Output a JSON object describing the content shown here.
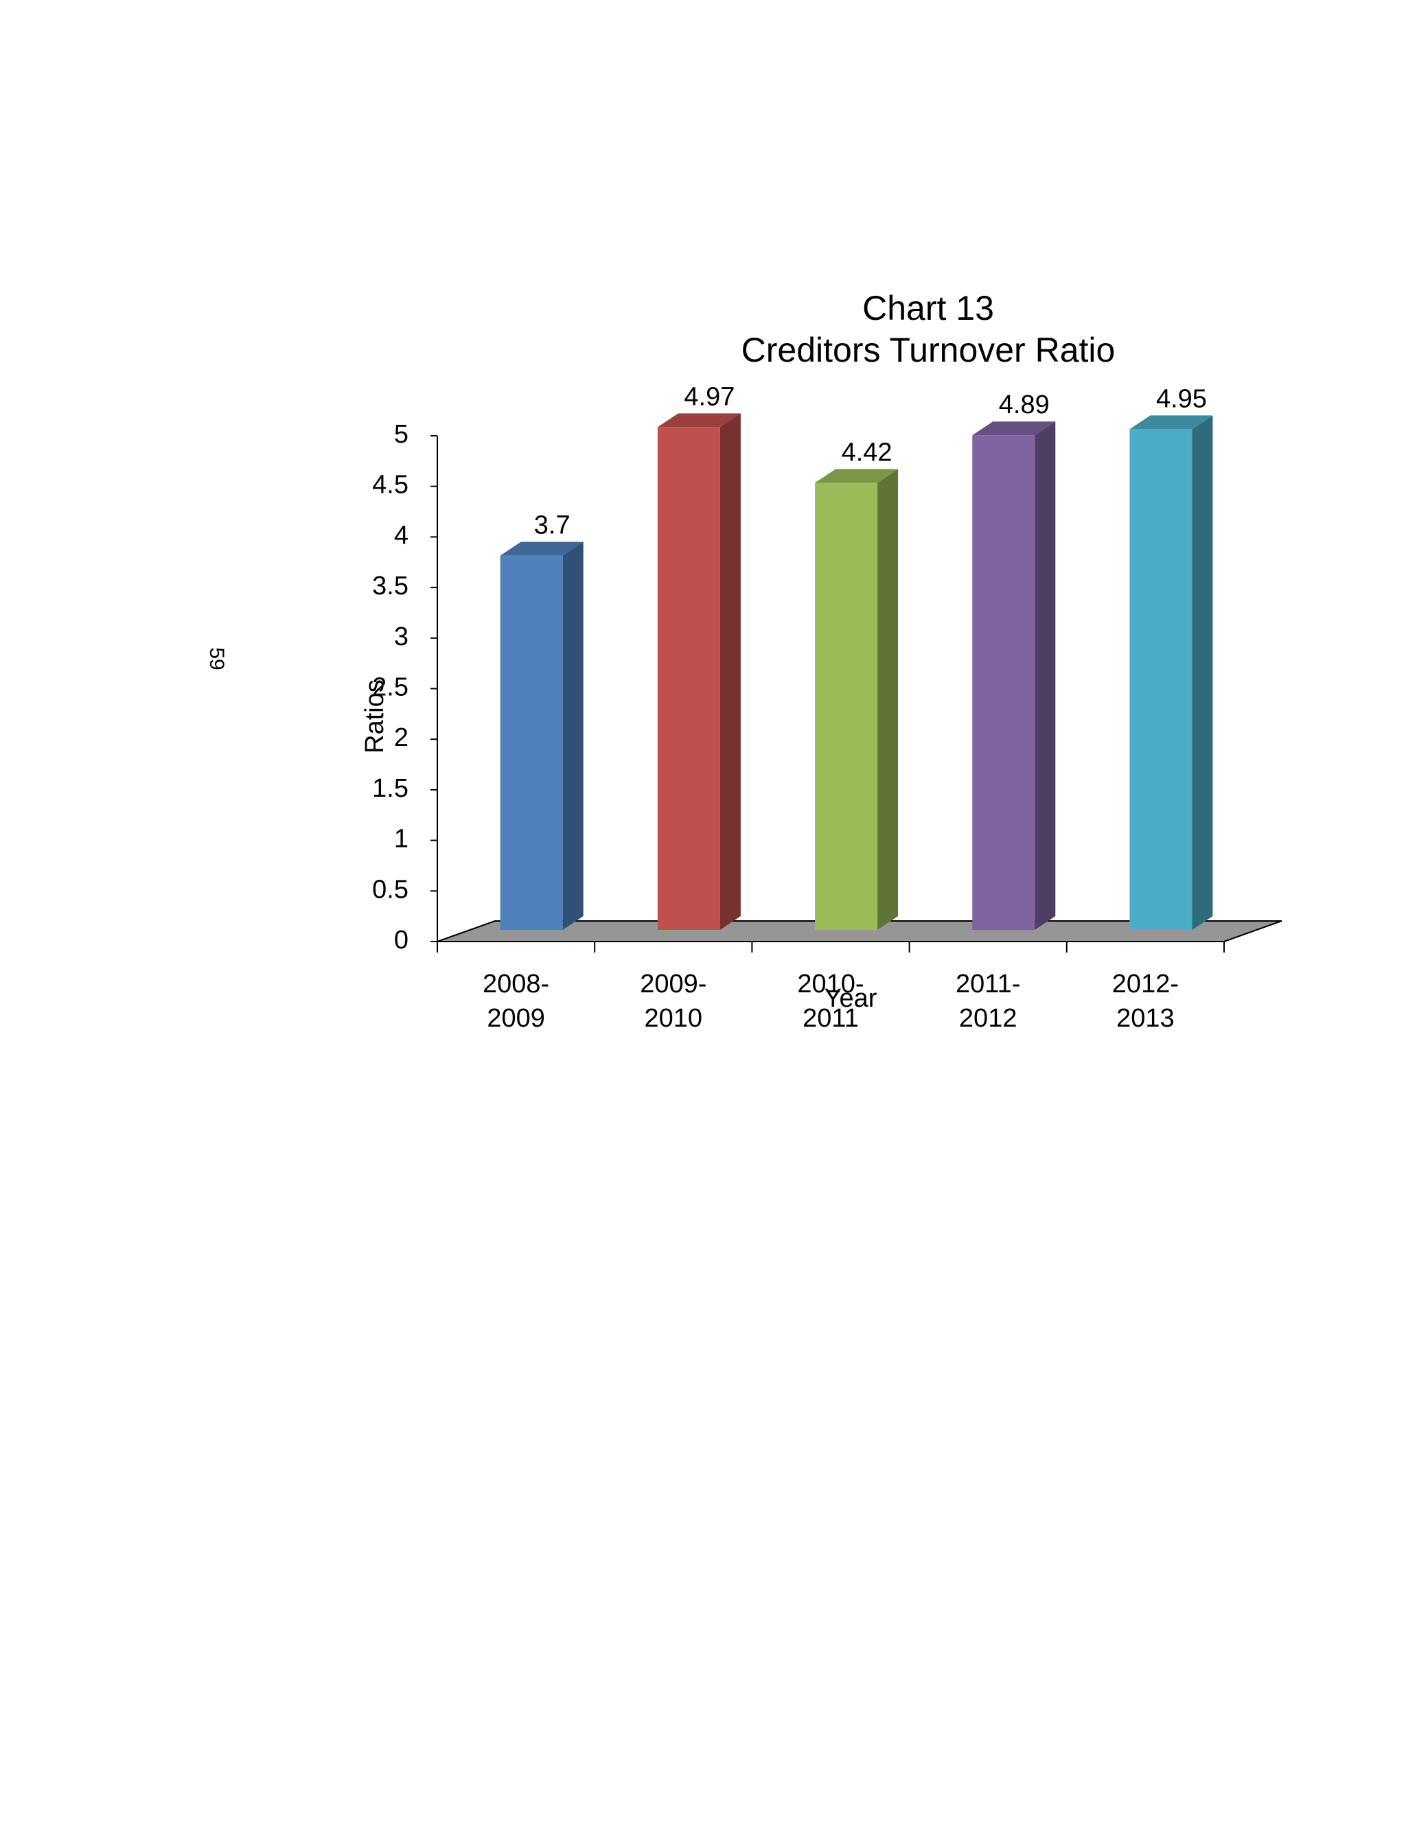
{
  "page_number": "59",
  "chart_data": {
    "type": "bar3d",
    "title": [
      "Chart 13",
      "Creditors Turnover Ratio"
    ],
    "x_label": "Year",
    "y_label": "Ratios",
    "categories": [
      "2008-2009",
      "2009-2010",
      "2010-2011",
      "2011-2012",
      "2012-2013"
    ],
    "values": [
      3.7,
      4.97,
      4.42,
      4.89,
      4.95
    ],
    "colors": [
      "#4f81bd",
      "#c0504d",
      "#9bbb59",
      "#8064a2",
      "#4bacc6"
    ],
    "ylim": [
      0,
      5
    ],
    "yticks": [
      0,
      0.5,
      1,
      1.5,
      2,
      2.5,
      3,
      3.5,
      4,
      4.5,
      5
    ]
  }
}
